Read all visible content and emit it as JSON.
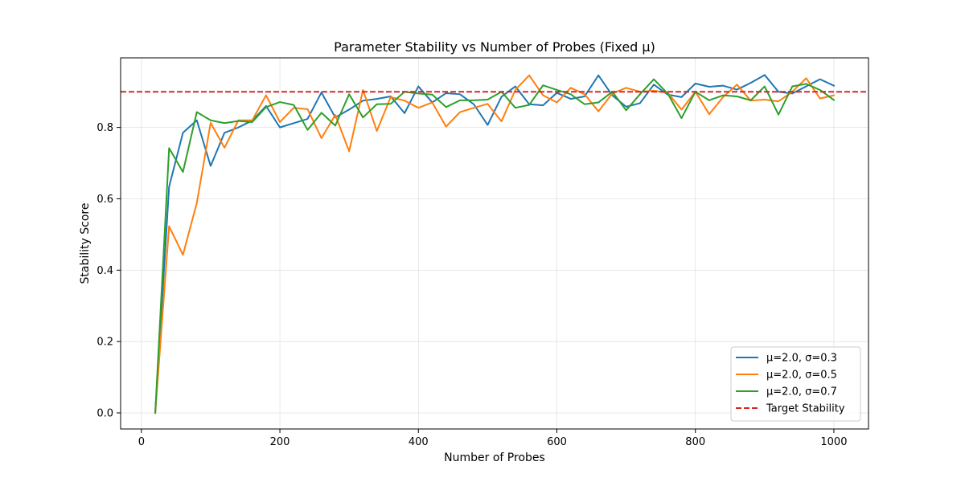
{
  "chart_data": {
    "type": "line",
    "title": "Parameter Stability vs Number of Probes (Fixed μ)",
    "xlabel": "Number of Probes",
    "ylabel": "Stability Score",
    "xlim": [
      -30,
      1050
    ],
    "ylim": [
      -0.045,
      0.995
    ],
    "x_ticks": [
      0,
      200,
      400,
      600,
      800,
      1000
    ],
    "y_ticks": [
      0.0,
      0.2,
      0.4,
      0.6,
      0.8
    ],
    "x_tick_labels": [
      "0",
      "200",
      "400",
      "600",
      "800",
      "1000"
    ],
    "y_tick_labels": [
      "0.0",
      "0.2",
      "0.4",
      "0.6",
      "0.8"
    ],
    "grid": true,
    "legend_position": "lower-right",
    "x": [
      20,
      40,
      60,
      80,
      100,
      120,
      140,
      160,
      180,
      200,
      220,
      240,
      260,
      280,
      300,
      320,
      340,
      360,
      380,
      400,
      420,
      440,
      460,
      480,
      500,
      520,
      540,
      560,
      580,
      600,
      620,
      640,
      660,
      680,
      700,
      720,
      740,
      760,
      780,
      800,
      820,
      840,
      860,
      880,
      900,
      920,
      940,
      960,
      980,
      1000
    ],
    "series": [
      {
        "name": "μ=2.0, σ=0.3",
        "color": "#1f77b4",
        "style": "solid",
        "values": [
          0.0,
          0.634,
          0.785,
          0.82,
          0.692,
          0.785,
          0.8,
          0.819,
          0.86,
          0.8,
          0.812,
          0.824,
          0.898,
          0.828,
          0.85,
          0.875,
          0.88,
          0.887,
          0.84,
          0.915,
          0.87,
          0.896,
          0.893,
          0.865,
          0.807,
          0.886,
          0.915,
          0.865,
          0.862,
          0.897,
          0.88,
          0.887,
          0.946,
          0.89,
          0.858,
          0.868,
          0.92,
          0.892,
          0.885,
          0.923,
          0.914,
          0.917,
          0.906,
          0.925,
          0.947,
          0.9,
          0.895,
          0.915,
          0.935,
          0.917
        ]
      },
      {
        "name": "μ=2.0, σ=0.5",
        "color": "#ff7f0e",
        "style": "solid",
        "values": [
          0.0,
          0.523,
          0.443,
          0.588,
          0.813,
          0.743,
          0.82,
          0.82,
          0.89,
          0.815,
          0.855,
          0.851,
          0.77,
          0.835,
          0.733,
          0.905,
          0.79,
          0.885,
          0.875,
          0.855,
          0.87,
          0.802,
          0.843,
          0.855,
          0.866,
          0.817,
          0.905,
          0.946,
          0.89,
          0.87,
          0.911,
          0.893,
          0.845,
          0.895,
          0.911,
          0.9,
          0.903,
          0.897,
          0.85,
          0.9,
          0.837,
          0.885,
          0.92,
          0.875,
          0.878,
          0.873,
          0.9,
          0.938,
          0.881,
          0.89
        ]
      },
      {
        "name": "μ=2.0, σ=0.7",
        "color": "#2ca02c",
        "style": "solid",
        "values": [
          0.0,
          0.742,
          0.675,
          0.843,
          0.82,
          0.812,
          0.818,
          0.815,
          0.857,
          0.871,
          0.863,
          0.793,
          0.841,
          0.805,
          0.893,
          0.828,
          0.865,
          0.866,
          0.9,
          0.895,
          0.892,
          0.857,
          0.876,
          0.876,
          0.878,
          0.9,
          0.855,
          0.863,
          0.918,
          0.905,
          0.893,
          0.865,
          0.87,
          0.9,
          0.848,
          0.893,
          0.935,
          0.895,
          0.826,
          0.9,
          0.876,
          0.89,
          0.887,
          0.876,
          0.915,
          0.836,
          0.915,
          0.922,
          0.905,
          0.877
        ]
      },
      {
        "name": "Target Stability",
        "color": "#d62728",
        "style": "dashed",
        "y": 0.9
      }
    ]
  }
}
